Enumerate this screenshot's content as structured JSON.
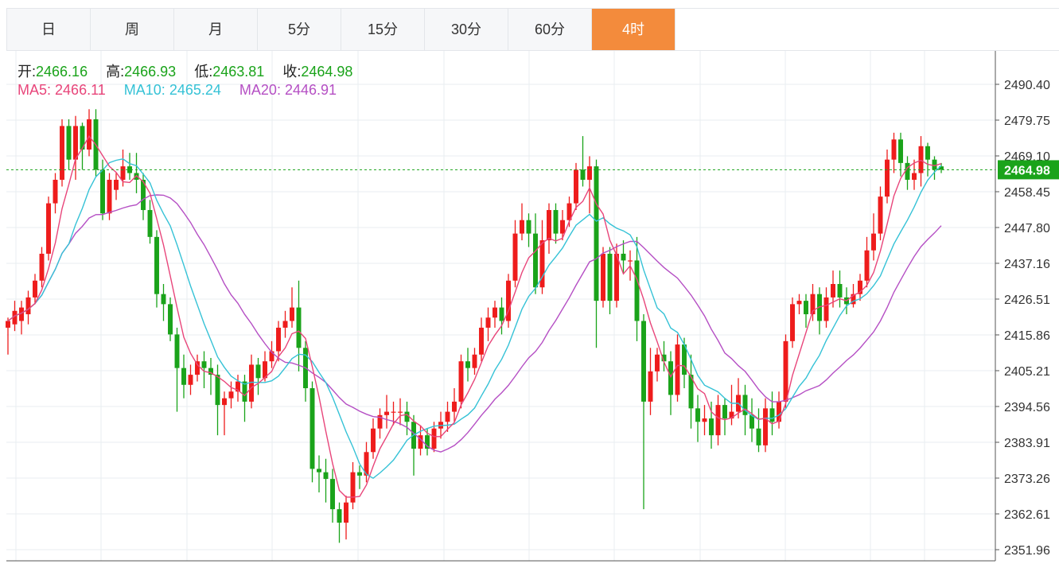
{
  "tabs": [
    {
      "label": "日"
    },
    {
      "label": "周"
    },
    {
      "label": "月"
    },
    {
      "label": "5分"
    },
    {
      "label": "15分"
    },
    {
      "label": "30分"
    },
    {
      "label": "60分"
    },
    {
      "label": "4时"
    }
  ],
  "active_tab": "4时",
  "ohlc": {
    "open_label": "开:",
    "open": "2466.16",
    "high_label": "高:",
    "high": "2466.93",
    "low_label": "低:",
    "low": "2463.81",
    "close_label": "收:",
    "close": "2464.98"
  },
  "ma": {
    "ma5_label": "MA5:",
    "ma5": "2466.11",
    "ma10_label": "MA10:",
    "ma10": "2465.24",
    "ma20_label": "MA20:",
    "ma20": "2446.91"
  },
  "colors": {
    "up": "#ee1c1c",
    "down": "#1aa31a",
    "ma5": "#e8457a",
    "ma10": "#35c2d6",
    "ma20": "#b54fc4",
    "active_tab": "#f38b3c",
    "last_price": "#1aa31a"
  },
  "chart_data": {
    "type": "candlestick",
    "last_price": "2464.98",
    "y_ticks": [
      "2490.40",
      "2479.75",
      "2469.10",
      "2458.45",
      "2447.80",
      "2437.16",
      "2426.51",
      "2415.86",
      "2405.21",
      "2394.56",
      "2383.91",
      "2373.26",
      "2362.61",
      "2351.96"
    ],
    "ylim": [
      2351.96,
      2490.4
    ],
    "candles": [
      [
        2418,
        2420,
        2410,
        2421
      ],
      [
        2419,
        2423,
        2417,
        2426
      ],
      [
        2420,
        2424,
        2416,
        2426
      ],
      [
        2422,
        2427,
        2419,
        2429
      ],
      [
        2427,
        2432,
        2425,
        2434
      ],
      [
        2432,
        2440,
        2430,
        2442
      ],
      [
        2440,
        2455,
        2438,
        2457
      ],
      [
        2455,
        2462,
        2452,
        2464
      ],
      [
        2462,
        2478,
        2460,
        2480
      ],
      [
        2478,
        2468,
        2465,
        2480
      ],
      [
        2468,
        2478,
        2462,
        2481
      ],
      [
        2478,
        2471,
        2465,
        2479
      ],
      [
        2471,
        2480,
        2469,
        2483
      ],
      [
        2480,
        2465,
        2463,
        2483
      ],
      [
        2465,
        2452,
        2450,
        2468
      ],
      [
        2452,
        2462,
        2450,
        2464
      ],
      [
        2459,
        2462,
        2456,
        2464
      ],
      [
        2462,
        2466,
        2460,
        2471
      ],
      [
        2466,
        2464,
        2462,
        2470
      ],
      [
        2464,
        2462,
        2458,
        2470
      ],
      [
        2462,
        2453,
        2450,
        2464
      ],
      [
        2453,
        2445,
        2443,
        2456
      ],
      [
        2445,
        2428,
        2424,
        2447
      ],
      [
        2428,
        2425,
        2420,
        2431
      ],
      [
        2425,
        2416,
        2414,
        2427
      ],
      [
        2416,
        2406,
        2393,
        2418
      ],
      [
        2406,
        2401,
        2397,
        2410
      ],
      [
        2401,
        2404,
        2398,
        2407
      ],
      [
        2404,
        2408,
        2402,
        2410
      ],
      [
        2408,
        2406,
        2400,
        2411
      ],
      [
        2406,
        2404,
        2398,
        2409
      ],
      [
        2404,
        2395,
        2386,
        2407
      ],
      [
        2395,
        2397,
        2386,
        2399
      ],
      [
        2397,
        2399,
        2394,
        2402
      ],
      [
        2399,
        2402,
        2396,
        2404
      ],
      [
        2402,
        2396,
        2390,
        2404
      ],
      [
        2396,
        2407,
        2394,
        2410
      ],
      [
        2407,
        2403,
        2398,
        2409
      ],
      [
        2403,
        2408,
        2402,
        2411
      ],
      [
        2408,
        2411,
        2406,
        2414
      ],
      [
        2411,
        2418,
        2408,
        2420
      ],
      [
        2418,
        2420,
        2415,
        2423
      ],
      [
        2420,
        2424,
        2418,
        2430
      ],
      [
        2424,
        2412,
        2405,
        2432
      ],
      [
        2412,
        2400,
        2396,
        2414
      ],
      [
        2400,
        2376,
        2372,
        2402
      ],
      [
        2376,
        2375,
        2369,
        2380
      ],
      [
        2375,
        2373,
        2366,
        2379
      ],
      [
        2373,
        2364,
        2360,
        2376
      ],
      [
        2364,
        2360,
        2354,
        2366
      ],
      [
        2360,
        2366,
        2355,
        2368
      ],
      [
        2366,
        2375,
        2364,
        2378
      ],
      [
        2375,
        2374,
        2370,
        2377
      ],
      [
        2374,
        2381,
        2372,
        2384
      ],
      [
        2381,
        2388,
        2379,
        2391
      ],
      [
        2388,
        2392,
        2385,
        2394
      ],
      [
        2392,
        2393,
        2388,
        2398
      ],
      [
        2393,
        2393,
        2389,
        2396
      ],
      [
        2393,
        2393,
        2389,
        2397
      ],
      [
        2393,
        2390,
        2386,
        2396
      ],
      [
        2390,
        2382,
        2374,
        2392
      ],
      [
        2382,
        2386,
        2380,
        2389
      ],
      [
        2386,
        2382,
        2380,
        2388
      ],
      [
        2382,
        2388,
        2381,
        2390
      ],
      [
        2388,
        2390,
        2385,
        2393
      ],
      [
        2390,
        2393,
        2387,
        2396
      ],
      [
        2393,
        2396,
        2390,
        2400
      ],
      [
        2396,
        2408,
        2394,
        2410
      ],
      [
        2408,
        2406,
        2402,
        2412
      ],
      [
        2406,
        2410,
        2404,
        2412
      ],
      [
        2410,
        2418,
        2408,
        2421
      ],
      [
        2418,
        2421,
        2414,
        2424
      ],
      [
        2421,
        2424,
        2418,
        2426
      ],
      [
        2424,
        2420,
        2416,
        2427
      ],
      [
        2420,
        2432,
        2418,
        2434
      ],
      [
        2432,
        2446,
        2430,
        2450
      ],
      [
        2446,
        2450,
        2444,
        2455
      ],
      [
        2450,
        2446,
        2442,
        2452
      ],
      [
        2446,
        2430,
        2428,
        2452
      ],
      [
        2430,
        2444,
        2428,
        2450
      ],
      [
        2444,
        2453,
        2440,
        2455
      ],
      [
        2453,
        2446,
        2443,
        2455
      ],
      [
        2446,
        2450,
        2444,
        2453
      ],
      [
        2450,
        2455,
        2448,
        2457
      ],
      [
        2455,
        2465,
        2453,
        2467
      ],
      [
        2465,
        2462,
        2460,
        2475
      ],
      [
        2462,
        2466,
        2452,
        2469
      ],
      [
        2466,
        2426,
        2412,
        2468
      ],
      [
        2426,
        2440,
        2424,
        2442
      ],
      [
        2440,
        2426,
        2422,
        2442
      ],
      [
        2426,
        2440,
        2424,
        2443
      ],
      [
        2440,
        2438,
        2434,
        2444
      ],
      [
        2438,
        2438,
        2432,
        2441
      ],
      [
        2438,
        2420,
        2414,
        2445
      ],
      [
        2420,
        2396,
        2364,
        2422
      ],
      [
        2396,
        2405,
        2392,
        2412
      ],
      [
        2405,
        2410,
        2402,
        2412
      ],
      [
        2410,
        2408,
        2405,
        2414
      ],
      [
        2408,
        2398,
        2392,
        2411
      ],
      [
        2398,
        2413,
        2396,
        2416
      ],
      [
        2413,
        2404,
        2400,
        2415
      ],
      [
        2404,
        2394,
        2388,
        2410
      ],
      [
        2394,
        2390,
        2384,
        2398
      ],
      [
        2390,
        2391,
        2386,
        2395
      ],
      [
        2391,
        2386,
        2382,
        2396
      ],
      [
        2386,
        2395,
        2383,
        2398
      ],
      [
        2395,
        2391,
        2386,
        2397
      ],
      [
        2391,
        2393,
        2389,
        2401
      ],
      [
        2393,
        2398,
        2391,
        2403
      ],
      [
        2398,
        2392,
        2386,
        2401
      ],
      [
        2392,
        2388,
        2384,
        2397
      ],
      [
        2388,
        2383,
        2381,
        2394
      ],
      [
        2383,
        2394,
        2381,
        2397
      ],
      [
        2394,
        2390,
        2386,
        2399
      ],
      [
        2390,
        2396,
        2388,
        2399
      ],
      [
        2396,
        2414,
        2394,
        2416
      ],
      [
        2414,
        2425,
        2412,
        2427
      ],
      [
        2425,
        2426,
        2422,
        2428
      ],
      [
        2426,
        2422,
        2418,
        2428
      ],
      [
        2422,
        2428,
        2420,
        2431
      ],
      [
        2428,
        2420,
        2416,
        2430
      ],
      [
        2420,
        2427,
        2418,
        2430
      ],
      [
        2427,
        2431,
        2424,
        2435
      ],
      [
        2431,
        2427,
        2424,
        2435
      ],
      [
        2427,
        2425,
        2422,
        2430
      ],
      [
        2425,
        2428,
        2424,
        2431
      ],
      [
        2428,
        2432,
        2426,
        2434
      ],
      [
        2432,
        2441,
        2430,
        2445
      ],
      [
        2441,
        2446,
        2438,
        2452
      ],
      [
        2446,
        2457,
        2444,
        2460
      ],
      [
        2457,
        2468,
        2455,
        2471
      ],
      [
        2468,
        2474,
        2464,
        2476
      ],
      [
        2474,
        2467,
        2463,
        2476
      ],
      [
        2467,
        2462,
        2459,
        2469
      ],
      [
        2462,
        2464,
        2459,
        2468
      ],
      [
        2464,
        2472,
        2460,
        2475
      ],
      [
        2472,
        2468,
        2463,
        2473
      ],
      [
        2468,
        2465,
        2462,
        2469
      ],
      [
        2466,
        2465,
        2464,
        2467
      ]
    ]
  }
}
